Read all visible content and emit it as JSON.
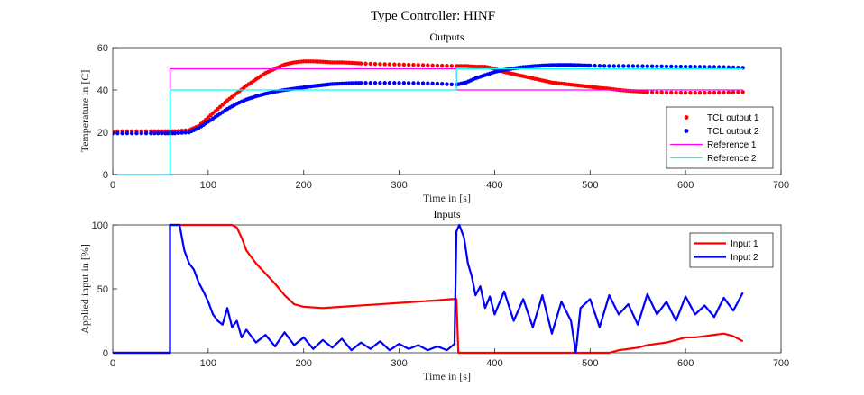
{
  "figure_title": "Type Controller: HINF",
  "chart_data": [
    {
      "type": "line",
      "title": "Outputs",
      "xlabel": "Time in [s]",
      "ylabel": "Temperature in [C]",
      "xlim": [
        0,
        700
      ],
      "ylim": [
        0,
        60
      ],
      "xticks": [
        "0",
        "100",
        "200",
        "300",
        "400",
        "500",
        "600",
        "700"
      ],
      "yticks": [
        "0",
        "20",
        "40",
        "60"
      ],
      "legend_position": "bottom-right",
      "series": [
        {
          "name": "TCL output 1",
          "style": "dots",
          "color": "#ff0000",
          "x": [
            0,
            20,
            40,
            55,
            65,
            80,
            90,
            100,
            110,
            120,
            130,
            140,
            150,
            160,
            170,
            180,
            190,
            200,
            210,
            220,
            230,
            240,
            250,
            260,
            280,
            300,
            320,
            340,
            360,
            370,
            380,
            390,
            400,
            410,
            420,
            430,
            440,
            450,
            460,
            470,
            480,
            490,
            500,
            510,
            520,
            530,
            540,
            550,
            560,
            580,
            600,
            620,
            640,
            660
          ],
          "y": [
            20.5,
            20.5,
            20.5,
            20.5,
            20.5,
            21,
            23,
            27,
            31,
            35,
            38.5,
            42,
            45,
            48,
            50,
            52,
            53,
            53.5,
            53.5,
            53.3,
            53,
            53,
            52.8,
            52.5,
            52.2,
            52,
            51.8,
            51.5,
            51.3,
            51.3,
            51,
            51,
            50,
            48.5,
            47.5,
            46.5,
            45.5,
            44.5,
            43.5,
            43,
            42.5,
            42,
            41.5,
            41,
            40.6,
            40,
            39.6,
            39.3,
            39,
            38.8,
            38.7,
            38.7,
            38.8,
            39
          ]
        },
        {
          "name": "TCL output 2",
          "style": "dots",
          "color": "#0000ff",
          "x": [
            0,
            20,
            40,
            55,
            65,
            80,
            90,
            100,
            110,
            120,
            130,
            140,
            150,
            160,
            170,
            180,
            190,
            200,
            210,
            220,
            230,
            240,
            250,
            260,
            280,
            300,
            320,
            340,
            360,
            370,
            380,
            390,
            400,
            410,
            420,
            430,
            440,
            450,
            460,
            470,
            480,
            490,
            500,
            520,
            540,
            560,
            580,
            600,
            620,
            640,
            660
          ],
          "y": [
            19.5,
            19.5,
            19.5,
            19.5,
            19.5,
            20,
            22,
            25,
            28,
            31,
            33.5,
            35.5,
            37,
            38.2,
            39.2,
            40,
            40.6,
            41.2,
            41.8,
            42.3,
            42.8,
            43,
            43.2,
            43.3,
            43.3,
            43.3,
            43.2,
            43,
            42.5,
            43.5,
            45.5,
            47,
            48.5,
            49.5,
            50.2,
            50.8,
            51.2,
            51.5,
            51.7,
            51.8,
            51.8,
            51.6,
            51.5,
            51.3,
            51.3,
            51.2,
            51.1,
            51,
            50.9,
            50.8,
            50.5
          ]
        },
        {
          "name": "Reference 1",
          "style": "line",
          "color": "#ff00ff",
          "x": [
            0,
            60,
            60,
            360,
            360,
            660
          ],
          "y": [
            0,
            0,
            50,
            50,
            40,
            40
          ]
        },
        {
          "name": "Reference 2",
          "style": "line",
          "color": "#00ffff",
          "x": [
            0,
            60,
            60,
            360,
            360,
            660
          ],
          "y": [
            0,
            0,
            40,
            40,
            50,
            50
          ]
        }
      ]
    },
    {
      "type": "line",
      "title": "Inputs",
      "xlabel": "Time in [s]",
      "ylabel": "Applied input in [%]",
      "xlim": [
        0,
        700
      ],
      "ylim": [
        0,
        100
      ],
      "xticks": [
        "0",
        "100",
        "200",
        "300",
        "400",
        "500",
        "600",
        "700"
      ],
      "yticks": [
        "0",
        "50",
        "100"
      ],
      "legend_position": "top-right",
      "series": [
        {
          "name": "Input 1",
          "style": "line",
          "color": "#ff0000",
          "x": [
            0,
            60,
            60,
            125,
            130,
            135,
            140,
            150,
            160,
            170,
            180,
            190,
            200,
            220,
            240,
            260,
            280,
            300,
            320,
            340,
            355,
            360,
            362,
            400,
            450,
            500,
            520,
            530,
            540,
            550,
            560,
            570,
            580,
            590,
            600,
            610,
            620,
            630,
            640,
            650,
            660
          ],
          "y": [
            0,
            0,
            100,
            100,
            98,
            90,
            80,
            70,
            62,
            54,
            45,
            38,
            36,
            35,
            36,
            37,
            38,
            39,
            40,
            41,
            42,
            42,
            0,
            0,
            0,
            0,
            0,
            2,
            3,
            4,
            6,
            7,
            8,
            10,
            12,
            12,
            13,
            14,
            15,
            13,
            9
          ]
        },
        {
          "name": "Input 2",
          "style": "line",
          "color": "#0000ff",
          "x": [
            0,
            60,
            60,
            70,
            75,
            80,
            85,
            90,
            95,
            100,
            105,
            110,
            115,
            120,
            125,
            130,
            135,
            140,
            150,
            160,
            170,
            180,
            190,
            200,
            210,
            220,
            230,
            240,
            250,
            260,
            270,
            280,
            290,
            300,
            310,
            320,
            330,
            340,
            350,
            358,
            360,
            363,
            368,
            372,
            376,
            380,
            385,
            390,
            395,
            400,
            410,
            420,
            430,
            440,
            450,
            460,
            470,
            480,
            485,
            490,
            500,
            510,
            520,
            530,
            540,
            550,
            560,
            570,
            580,
            590,
            600,
            610,
            620,
            630,
            640,
            650,
            660
          ],
          "y": [
            0,
            0,
            100,
            100,
            80,
            70,
            65,
            55,
            48,
            40,
            30,
            25,
            22,
            35,
            20,
            25,
            12,
            18,
            8,
            14,
            5,
            16,
            6,
            12,
            3,
            10,
            4,
            11,
            2,
            8,
            3,
            9,
            2,
            7,
            3,
            6,
            2,
            5,
            2,
            7,
            95,
            100,
            90,
            70,
            60,
            45,
            52,
            35,
            44,
            30,
            48,
            25,
            42,
            20,
            45,
            15,
            40,
            25,
            0,
            35,
            42,
            20,
            45,
            30,
            38,
            22,
            46,
            30,
            40,
            25,
            44,
            30,
            37,
            28,
            43,
            33,
            47
          ]
        }
      ]
    }
  ]
}
